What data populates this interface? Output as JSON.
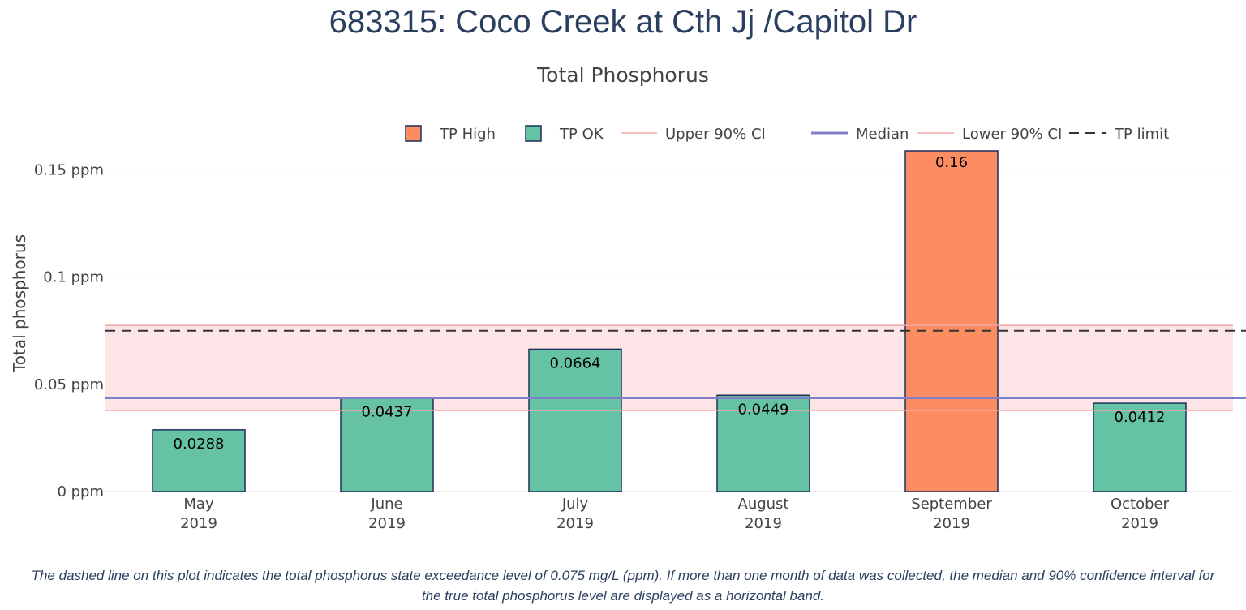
{
  "page": {
    "title": "683315: Coco Creek at Cth Jj /Capitol Dr",
    "footer_note": "The dashed line on this plot indicates the total phosphorus state exceedance level of 0.075 mg/L (ppm). If more than one month of data was collected, the median and 90% confidence interval for the true total phosphorus level are displayed as a horizontal band."
  },
  "chart_data": {
    "type": "bar",
    "title": "Total Phosphorus",
    "xlabel": "",
    "ylabel": "Total phosphorus",
    "y_unit": "ppm",
    "ylim": [
      0,
      0.16
    ],
    "yticks": [
      {
        "value": 0,
        "label": "0 ppm"
      },
      {
        "value": 0.05,
        "label": "0.05 ppm"
      },
      {
        "value": 0.1,
        "label": "0.1 ppm"
      },
      {
        "value": 0.15,
        "label": "0.15 ppm"
      }
    ],
    "grid": true,
    "categories": [
      {
        "month": "May",
        "year": "2019"
      },
      {
        "month": "June",
        "year": "2019"
      },
      {
        "month": "July",
        "year": "2019"
      },
      {
        "month": "August",
        "year": "2019"
      },
      {
        "month": "September",
        "year": "2019"
      },
      {
        "month": "October",
        "year": "2019"
      }
    ],
    "values": [
      0.0288,
      0.0437,
      0.0664,
      0.0449,
      0.16,
      0.0412
    ],
    "value_labels": [
      "0.0288",
      "0.0437",
      "0.0664",
      "0.0449",
      "0.16",
      "0.0412"
    ],
    "bar_status": [
      "TP OK",
      "TP OK",
      "TP OK",
      "TP OK",
      "TP High",
      "TP OK"
    ],
    "reference_lines": {
      "median": 0.0437,
      "upper_90_ci": 0.0775,
      "lower_90_ci": 0.0378,
      "tp_limit": 0.075
    },
    "legend": {
      "position": "top-right",
      "entries": [
        {
          "label": "TP High",
          "kind": "bar",
          "color": "#fc8d62"
        },
        {
          "label": "TP OK",
          "kind": "bar",
          "color": "#66c2a5"
        },
        {
          "label": "Upper 90% CI",
          "kind": "line",
          "color": "#f4a7a7"
        },
        {
          "label": "Median",
          "kind": "line",
          "color": "#7f7fc7"
        },
        {
          "label": "Lower 90% CI",
          "kind": "line",
          "color": "#f4a7a7"
        },
        {
          "label": "TP limit",
          "kind": "dash",
          "color": "#333333"
        }
      ]
    },
    "colors": {
      "tp_high": "#fc8d62",
      "tp_ok": "#66c2a5",
      "bar_outline": "#1f2f5a",
      "ci_band": "#fde4e6",
      "ci_line": "#f4a7a7",
      "median": "#7f7fc7",
      "limit": "#333333",
      "grid": "#eeeeee"
    }
  }
}
